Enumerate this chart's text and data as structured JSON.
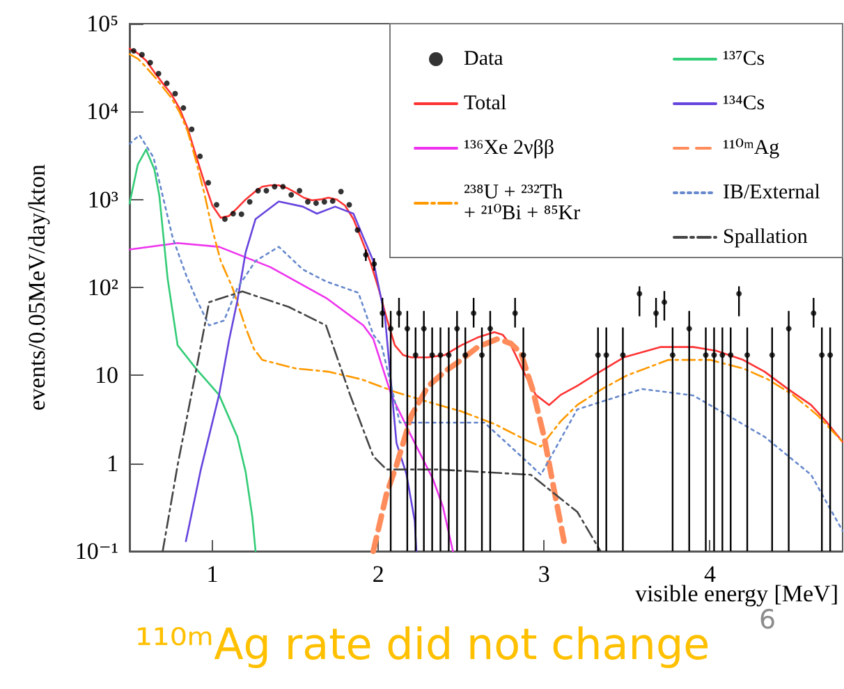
{
  "chart_data": {
    "type": "line",
    "xlabel": "visible energy [MeV]",
    "ylabel": "events/0.05MeV/day/kton",
    "annotations": [
      "¹¹⁰ᵐAg rate did not change",
      "6"
    ],
    "xlim": [
      0.5,
      4.8
    ],
    "xticks": [
      1,
      2,
      3,
      4
    ],
    "ylim": [
      0.1,
      100000
    ],
    "yticks": [
      {
        "value": 0.1,
        "label": "10⁻¹"
      },
      1,
      10,
      {
        "value": 100,
        "label": "10²"
      },
      {
        "value": 1000,
        "label": "10³"
      },
      {
        "value": 10000,
        "label": "10⁴"
      },
      {
        "value": 100000,
        "label": "10⁵"
      }
    ],
    "log": true,
    "grid": false,
    "legend": "top right",
    "marker": "none",
    "series": [
      {
        "name": "Data",
        "type": "scatter",
        "marker": "circle",
        "color": "#000000",
        "x": [
          0.525,
          0.575,
          0.625,
          0.675,
          0.725,
          0.775,
          0.825,
          0.875,
          0.925,
          0.975,
          1.025,
          1.075,
          1.125,
          1.175,
          1.225,
          1.275,
          1.325,
          1.375,
          1.425,
          1.475,
          1.525,
          1.575,
          1.625,
          1.675,
          1.725,
          1.775,
          1.825,
          1.875,
          1.925,
          1.975,
          2.025,
          2.075,
          2.125,
          2.175,
          2.225,
          2.275,
          2.325,
          2.375,
          2.425,
          2.475,
          2.525,
          2.575,
          2.625,
          2.675,
          2.825,
          2.875,
          3.325,
          3.375,
          3.475,
          3.575,
          3.675,
          3.725,
          3.775,
          3.875,
          3.975,
          4.025,
          4.075,
          4.125,
          4.175,
          4.225,
          4.375,
          4.475,
          4.625,
          4.675,
          4.725
        ],
        "values": [
          49000,
          44500,
          36000,
          27000,
          21000,
          16000,
          11000,
          6300,
          3100,
          1550,
          870,
          600,
          690,
          680,
          940,
          1260,
          1260,
          1400,
          1400,
          1130,
          1260,
          940,
          910,
          940,
          960,
          1230,
          870,
          450,
          235,
          185,
          51,
          34,
          51,
          34,
          17,
          34,
          17,
          17,
          17,
          34,
          17,
          51,
          17,
          34,
          51,
          17,
          17,
          17,
          17,
          85,
          51,
          68,
          17,
          34,
          17,
          17,
          17,
          17,
          85,
          17,
          17,
          34,
          51,
          17,
          17
        ],
        "errors": [
          null,
          null,
          null,
          null,
          null,
          null,
          null,
          null,
          null,
          null,
          null,
          null,
          null,
          null,
          null,
          null,
          null,
          null,
          null,
          null,
          null,
          null,
          null,
          null,
          null,
          null,
          null,
          null,
          [
            200,
            270
          ],
          [
            155,
            215
          ],
          [
            35,
            76
          ],
          [
            0.1,
            54
          ],
          [
            35,
            76
          ],
          [
            0.1,
            54
          ],
          [
            0.1,
            35
          ],
          [
            0.1,
            54
          ],
          [
            0.1,
            35
          ],
          [
            0.1,
            35
          ],
          [
            0.1,
            35
          ],
          [
            0.1,
            54
          ],
          [
            0.1,
            35
          ],
          [
            35,
            76
          ],
          [
            0.1,
            35
          ],
          [
            0.1,
            54
          ],
          [
            35,
            76
          ],
          [
            0.1,
            35
          ],
          [
            0.1,
            35
          ],
          [
            0.1,
            35
          ],
          [
            0.1,
            35
          ],
          [
            47,
            103
          ],
          [
            35,
            76
          ],
          [
            42,
            91
          ],
          [
            0.1,
            35
          ],
          [
            0.1,
            54
          ],
          [
            0.1,
            35
          ],
          [
            0.1,
            35
          ],
          [
            0.1,
            35
          ],
          [
            0.1,
            35
          ],
          [
            47,
            103
          ],
          [
            0.1,
            35
          ],
          [
            0.1,
            35
          ],
          [
            0.1,
            54
          ],
          [
            35,
            76
          ],
          [
            0.1,
            35
          ],
          [
            0.1,
            35
          ]
        ]
      },
      {
        "name": "Total",
        "color": "#ff3333",
        "line_style": "solid",
        "x": [
          0.5,
          0.55,
          0.6,
          0.65,
          0.7,
          0.75,
          0.8,
          0.85,
          0.9,
          0.95,
          1.0,
          1.05,
          1.1,
          1.15,
          1.2,
          1.25,
          1.3,
          1.35,
          1.4,
          1.45,
          1.5,
          1.55,
          1.6,
          1.65,
          1.7,
          1.75,
          1.8,
          1.85,
          1.9,
          1.95,
          2.0,
          2.05,
          2.1,
          2.15,
          2.2,
          2.3,
          2.4,
          2.5,
          2.6,
          2.7,
          2.75,
          2.8,
          2.85,
          2.9,
          2.95,
          3.03,
          3.1,
          3.2,
          3.3,
          3.48,
          3.7,
          3.9,
          4.04,
          4.2,
          4.33,
          4.47,
          4.61,
          4.7,
          4.8
        ],
        "values": [
          52000,
          46000,
          38000,
          28000,
          21000,
          16000,
          11000,
          6500,
          3200,
          1600,
          850,
          620,
          650,
          800,
          1000,
          1200,
          1400,
          1450,
          1450,
          1350,
          1200,
          1050,
          980,
          1000,
          1050,
          1000,
          850,
          600,
          350,
          200,
          100,
          45,
          22,
          17,
          16,
          16,
          17,
          22,
          27,
          31,
          29,
          22,
          14,
          9,
          6,
          4.6,
          6,
          7.6,
          10,
          16,
          21,
          21,
          19,
          15,
          11,
          7,
          4.6,
          3,
          1.75
        ]
      },
      {
        "name": "¹³⁶Xe 2νββ",
        "color": "#ee33ee",
        "line_style": "solid",
        "x": [
          0.5,
          0.79,
          1.04,
          1.35,
          1.685,
          1.91,
          1.97,
          2.08,
          2.19,
          2.33,
          2.39,
          2.45
        ],
        "values": [
          270,
          320,
          290,
          170,
          76,
          37,
          26,
          5.9,
          2.2,
          0.66,
          0.32,
          0.1
        ]
      },
      {
        "name": "²³⁸U + ²³²Th\n+ ²¹⁰Bi + ⁸⁵Kr",
        "color": "#ff9900",
        "line_style": "dashdot",
        "x": [
          0.5,
          0.55,
          0.6,
          0.65,
          0.7,
          0.75,
          0.8,
          0.85,
          0.9,
          0.95,
          1.0,
          1.05,
          1.12,
          1.2,
          1.25,
          1.3,
          1.5,
          1.7,
          1.9,
          2.1,
          2.3,
          2.5,
          2.7,
          2.9,
          2.98,
          3.1,
          3.2,
          3.35,
          3.5,
          3.75,
          4.0,
          4.2,
          4.35,
          4.5,
          4.65,
          4.8
        ],
        "values": [
          45000,
          40000,
          32000,
          25000,
          19000,
          14500,
          10000,
          6000,
          2800,
          1200,
          450,
          200,
          100,
          35,
          20,
          15,
          12,
          11,
          9,
          6.5,
          5,
          3.9,
          2.8,
          1.8,
          1.55,
          3,
          4.6,
          7,
          10,
          15,
          15,
          12,
          9,
          6,
          3.5,
          1.75
        ]
      },
      {
        "name": "¹³⁷Cs",
        "color": "#33cc77",
        "line_style": "solid",
        "x": [
          0.5,
          0.55,
          0.6,
          0.65,
          0.68,
          0.73,
          0.79,
          0.9,
          1.04,
          1.15,
          1.2,
          1.24,
          1.26
        ],
        "values": [
          900,
          2500,
          3700,
          2200,
          1100,
          125,
          22,
          12,
          6,
          2,
          0.8,
          0.25,
          0.1
        ]
      },
      {
        "name": "¹³⁴Cs",
        "color": "#6644dd",
        "line_style": "solid",
        "x": [
          0.84,
          0.93,
          1.04,
          1.1,
          1.15,
          1.2,
          1.26,
          1.4,
          1.545,
          1.63,
          1.74,
          1.85,
          1.97,
          2.04,
          2.11,
          2.17,
          2.22,
          2.23
        ],
        "values": [
          0.13,
          0.85,
          6,
          25,
          70,
          250,
          600,
          950,
          830,
          690,
          830,
          690,
          200,
          47,
          1.7,
          0.75,
          0.22,
          0.1
        ]
      },
      {
        "name": "¹¹⁰ᵐAg",
        "color": "#ff8c5a",
        "line_style": "dashed",
        "x": [
          1.97,
          2.05,
          2.11,
          2.2,
          2.3,
          2.4,
          2.5,
          2.6,
          2.72,
          2.8,
          2.86,
          2.93,
          3.0,
          3.06,
          3.12
        ],
        "values": [
          0.1,
          0.45,
          0.95,
          3.5,
          7.5,
          11,
          15,
          21,
          26,
          23,
          18,
          7,
          2,
          0.5,
          0.13
        ]
      },
      {
        "name": "IB/External",
        "color": "#6688cc",
        "line_style": "dotted",
        "x": [
          0.5,
          0.56,
          0.645,
          0.7,
          0.76,
          0.84,
          0.9,
          0.98,
          1.07,
          1.15,
          1.26,
          1.4,
          1.545,
          1.685,
          1.88,
          1.97,
          2.02,
          2.13,
          2.25,
          2.36,
          2.64,
          2.92,
          2.98,
          3.2,
          3.59,
          3.9,
          4.33,
          4.61,
          4.8
        ],
        "values": [
          4300,
          5400,
          3000,
          1100,
          370,
          140,
          76,
          37,
          42,
          98,
          200,
          290,
          160,
          117,
          87,
          29,
          22,
          2.9,
          2.9,
          2.9,
          2.9,
          0.95,
          0.74,
          4.1,
          7,
          5.9,
          2,
          0.74,
          0.17
        ]
      },
      {
        "name": "Spallation",
        "color": "#444444",
        "line_style": "dashdot",
        "x": [
          0.7,
          0.79,
          0.9,
          0.98,
          1.18,
          1.46,
          1.685,
          1.83,
          1.97,
          2.05,
          2.36,
          2.92,
          3.2,
          3.34
        ],
        "values": [
          0.1,
          0.95,
          11,
          68,
          90,
          60,
          37,
          6,
          1.2,
          0.85,
          0.85,
          0.74,
          0.28,
          0.1
        ]
      }
    ]
  }
}
